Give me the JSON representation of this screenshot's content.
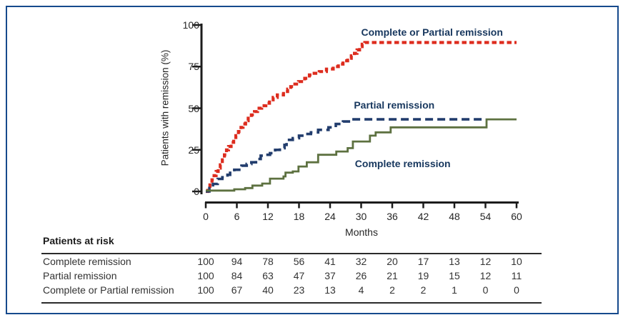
{
  "figure": {
    "border_color": "#164a8c",
    "axis_color": "#1c1c1c",
    "label_color": "#17375e"
  },
  "chart_data": {
    "type": "line",
    "subtype": "kaplan-meier-step",
    "title": "",
    "xlabel": "Months",
    "ylabel": "Patients with remission (%)",
    "xlim": [
      0,
      60
    ],
    "ylim": [
      0,
      100
    ],
    "x_ticks": [
      0,
      6,
      12,
      18,
      24,
      30,
      36,
      42,
      48,
      54,
      60
    ],
    "y_ticks": [
      0,
      25,
      50,
      75,
      100
    ],
    "grid": false,
    "legend_position": "inline-annotations",
    "series": [
      {
        "name": "Complete or Partial remission",
        "color": "#dd2c1e",
        "line_style": "dashed-short",
        "points": [
          [
            0,
            0
          ],
          [
            0.4,
            2
          ],
          [
            0.8,
            5
          ],
          [
            1.2,
            7
          ],
          [
            1.6,
            9.5
          ],
          [
            2,
            12
          ],
          [
            2.4,
            14
          ],
          [
            2.8,
            16
          ],
          [
            3.2,
            19
          ],
          [
            3.6,
            22
          ],
          [
            4,
            25
          ],
          [
            4.4,
            27
          ],
          [
            4.9,
            29.5
          ],
          [
            5.4,
            31.5
          ],
          [
            5.8,
            33.5
          ],
          [
            6.3,
            36
          ],
          [
            6.8,
            38.5
          ],
          [
            7.2,
            40.5
          ],
          [
            7.7,
            42.5
          ],
          [
            8.2,
            44
          ],
          [
            8.8,
            46
          ],
          [
            9.4,
            48
          ],
          [
            10,
            50
          ],
          [
            10.8,
            51.5
          ],
          [
            11.6,
            53
          ],
          [
            12.3,
            55
          ],
          [
            13,
            56.5
          ],
          [
            13.8,
            58
          ],
          [
            15,
            60
          ],
          [
            15.8,
            61.5
          ],
          [
            16.4,
            63
          ],
          [
            17.2,
            64.5
          ],
          [
            17.9,
            66
          ],
          [
            19.1,
            68
          ],
          [
            20,
            70
          ],
          [
            20.6,
            71
          ],
          [
            21.9,
            72
          ],
          [
            23.3,
            73.5
          ],
          [
            24.6,
            75
          ],
          [
            25.6,
            76.5
          ],
          [
            26.5,
            78.5
          ],
          [
            27.4,
            80
          ],
          [
            28.1,
            81.5
          ],
          [
            28.7,
            83
          ],
          [
            29.2,
            85
          ],
          [
            29.7,
            87
          ],
          [
            30.2,
            88.5
          ],
          [
            30.7,
            89.5
          ],
          [
            60,
            89.5
          ]
        ]
      },
      {
        "name": "Partial remission",
        "color": "#223d6d",
        "line_style": "dashed-long",
        "points": [
          [
            0,
            0
          ],
          [
            0.7,
            2
          ],
          [
            1.4,
            4.5
          ],
          [
            2.3,
            7.5
          ],
          [
            3.2,
            8.5
          ],
          [
            4.2,
            10
          ],
          [
            4.7,
            12
          ],
          [
            5.5,
            13
          ],
          [
            6.9,
            15.5
          ],
          [
            7.9,
            16.5
          ],
          [
            8.8,
            17.5
          ],
          [
            9.7,
            19.5
          ],
          [
            10.6,
            21.5
          ],
          [
            11.6,
            22
          ],
          [
            12.4,
            23
          ],
          [
            13.4,
            25
          ],
          [
            14.3,
            26
          ],
          [
            15.2,
            28
          ],
          [
            15.6,
            31
          ],
          [
            16.8,
            32
          ],
          [
            18,
            33.5
          ],
          [
            18.9,
            34.5
          ],
          [
            20.3,
            35.5
          ],
          [
            21.7,
            37
          ],
          [
            23.7,
            38.5
          ],
          [
            25.1,
            40.5
          ],
          [
            26.5,
            42
          ],
          [
            27.9,
            43.3
          ],
          [
            53.4,
            43.3
          ]
        ]
      },
      {
        "name": "Complete remission",
        "color": "#5d7140",
        "line_style": "solid",
        "points": [
          [
            0,
            0.5
          ],
          [
            5.5,
            1.3
          ],
          [
            7.6,
            2
          ],
          [
            9,
            3.5
          ],
          [
            10.9,
            4.7
          ],
          [
            12.4,
            7.7
          ],
          [
            15,
            9
          ],
          [
            15.4,
            11.3
          ],
          [
            16.8,
            12
          ],
          [
            17.9,
            15
          ],
          [
            19.5,
            17.5
          ],
          [
            21.7,
            22
          ],
          [
            25.2,
            24
          ],
          [
            27.4,
            26
          ],
          [
            28.4,
            30
          ],
          [
            31.7,
            33.5
          ],
          [
            32.8,
            35.5
          ],
          [
            35.7,
            38.5
          ],
          [
            54.2,
            43.3
          ],
          [
            60,
            43.3
          ]
        ]
      }
    ],
    "annotations": [
      {
        "text": "Complete or Partial remission",
        "x": 30,
        "y": 95.7
      },
      {
        "text": "Partial remission",
        "x": 28.6,
        "y": 51.9
      },
      {
        "text": "Complete remission",
        "x": 28.8,
        "y": 16.7
      }
    ]
  },
  "risk_table": {
    "title": "Patients at risk",
    "columns_months": [
      0,
      6,
      12,
      18,
      24,
      30,
      36,
      42,
      48,
      54,
      60
    ],
    "rows": [
      {
        "label": "Complete remission",
        "values": [
          100,
          94,
          78,
          56,
          41,
          32,
          20,
          17,
          13,
          12,
          10
        ]
      },
      {
        "label": "Partial remission",
        "values": [
          100,
          84,
          63,
          47,
          37,
          26,
          21,
          19,
          15,
          12,
          11
        ]
      },
      {
        "label": "Complete or Partial remission",
        "values": [
          100,
          67,
          40,
          23,
          13,
          4,
          2,
          2,
          1,
          0,
          0
        ]
      }
    ]
  }
}
